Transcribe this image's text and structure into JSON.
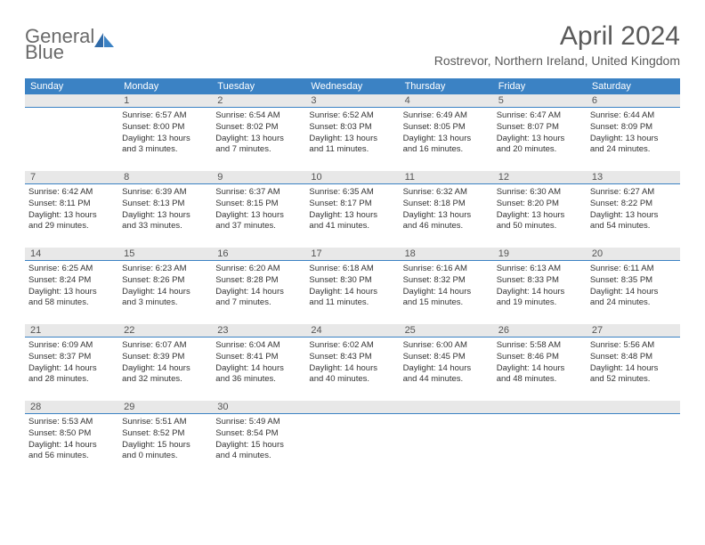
{
  "colors": {
    "header_bg": "#3b82c4",
    "header_text": "#ffffff",
    "daynum_bg": "#e8e8e8",
    "daynum_border": "#3b82c4",
    "body_text": "#333333",
    "title_text": "#5a5a5a",
    "logo_gray": "#6a6a6a",
    "logo_blue": "#3b82c4",
    "page_bg": "#ffffff"
  },
  "typography": {
    "title_fontsize": 30,
    "location_fontsize": 14,
    "weekday_fontsize": 11,
    "daynum_fontsize": 11,
    "cell_fontsize": 9.5
  },
  "logo": {
    "line1": "General",
    "line2": "Blue"
  },
  "title": "April 2024",
  "location": "Rostrevor, Northern Ireland, United Kingdom",
  "weekdays": [
    "Sunday",
    "Monday",
    "Tuesday",
    "Wednesday",
    "Thursday",
    "Friday",
    "Saturday"
  ],
  "weeks": [
    [
      null,
      {
        "n": "1",
        "sr": "Sunrise: 6:57 AM",
        "ss": "Sunset: 8:00 PM",
        "d1": "Daylight: 13 hours",
        "d2": "and 3 minutes."
      },
      {
        "n": "2",
        "sr": "Sunrise: 6:54 AM",
        "ss": "Sunset: 8:02 PM",
        "d1": "Daylight: 13 hours",
        "d2": "and 7 minutes."
      },
      {
        "n": "3",
        "sr": "Sunrise: 6:52 AM",
        "ss": "Sunset: 8:03 PM",
        "d1": "Daylight: 13 hours",
        "d2": "and 11 minutes."
      },
      {
        "n": "4",
        "sr": "Sunrise: 6:49 AM",
        "ss": "Sunset: 8:05 PM",
        "d1": "Daylight: 13 hours",
        "d2": "and 16 minutes."
      },
      {
        "n": "5",
        "sr": "Sunrise: 6:47 AM",
        "ss": "Sunset: 8:07 PM",
        "d1": "Daylight: 13 hours",
        "d2": "and 20 minutes."
      },
      {
        "n": "6",
        "sr": "Sunrise: 6:44 AM",
        "ss": "Sunset: 8:09 PM",
        "d1": "Daylight: 13 hours",
        "d2": "and 24 minutes."
      }
    ],
    [
      {
        "n": "7",
        "sr": "Sunrise: 6:42 AM",
        "ss": "Sunset: 8:11 PM",
        "d1": "Daylight: 13 hours",
        "d2": "and 29 minutes."
      },
      {
        "n": "8",
        "sr": "Sunrise: 6:39 AM",
        "ss": "Sunset: 8:13 PM",
        "d1": "Daylight: 13 hours",
        "d2": "and 33 minutes."
      },
      {
        "n": "9",
        "sr": "Sunrise: 6:37 AM",
        "ss": "Sunset: 8:15 PM",
        "d1": "Daylight: 13 hours",
        "d2": "and 37 minutes."
      },
      {
        "n": "10",
        "sr": "Sunrise: 6:35 AM",
        "ss": "Sunset: 8:17 PM",
        "d1": "Daylight: 13 hours",
        "d2": "and 41 minutes."
      },
      {
        "n": "11",
        "sr": "Sunrise: 6:32 AM",
        "ss": "Sunset: 8:18 PM",
        "d1": "Daylight: 13 hours",
        "d2": "and 46 minutes."
      },
      {
        "n": "12",
        "sr": "Sunrise: 6:30 AM",
        "ss": "Sunset: 8:20 PM",
        "d1": "Daylight: 13 hours",
        "d2": "and 50 minutes."
      },
      {
        "n": "13",
        "sr": "Sunrise: 6:27 AM",
        "ss": "Sunset: 8:22 PM",
        "d1": "Daylight: 13 hours",
        "d2": "and 54 minutes."
      }
    ],
    [
      {
        "n": "14",
        "sr": "Sunrise: 6:25 AM",
        "ss": "Sunset: 8:24 PM",
        "d1": "Daylight: 13 hours",
        "d2": "and 58 minutes."
      },
      {
        "n": "15",
        "sr": "Sunrise: 6:23 AM",
        "ss": "Sunset: 8:26 PM",
        "d1": "Daylight: 14 hours",
        "d2": "and 3 minutes."
      },
      {
        "n": "16",
        "sr": "Sunrise: 6:20 AM",
        "ss": "Sunset: 8:28 PM",
        "d1": "Daylight: 14 hours",
        "d2": "and 7 minutes."
      },
      {
        "n": "17",
        "sr": "Sunrise: 6:18 AM",
        "ss": "Sunset: 8:30 PM",
        "d1": "Daylight: 14 hours",
        "d2": "and 11 minutes."
      },
      {
        "n": "18",
        "sr": "Sunrise: 6:16 AM",
        "ss": "Sunset: 8:32 PM",
        "d1": "Daylight: 14 hours",
        "d2": "and 15 minutes."
      },
      {
        "n": "19",
        "sr": "Sunrise: 6:13 AM",
        "ss": "Sunset: 8:33 PM",
        "d1": "Daylight: 14 hours",
        "d2": "and 19 minutes."
      },
      {
        "n": "20",
        "sr": "Sunrise: 6:11 AM",
        "ss": "Sunset: 8:35 PM",
        "d1": "Daylight: 14 hours",
        "d2": "and 24 minutes."
      }
    ],
    [
      {
        "n": "21",
        "sr": "Sunrise: 6:09 AM",
        "ss": "Sunset: 8:37 PM",
        "d1": "Daylight: 14 hours",
        "d2": "and 28 minutes."
      },
      {
        "n": "22",
        "sr": "Sunrise: 6:07 AM",
        "ss": "Sunset: 8:39 PM",
        "d1": "Daylight: 14 hours",
        "d2": "and 32 minutes."
      },
      {
        "n": "23",
        "sr": "Sunrise: 6:04 AM",
        "ss": "Sunset: 8:41 PM",
        "d1": "Daylight: 14 hours",
        "d2": "and 36 minutes."
      },
      {
        "n": "24",
        "sr": "Sunrise: 6:02 AM",
        "ss": "Sunset: 8:43 PM",
        "d1": "Daylight: 14 hours",
        "d2": "and 40 minutes."
      },
      {
        "n": "25",
        "sr": "Sunrise: 6:00 AM",
        "ss": "Sunset: 8:45 PM",
        "d1": "Daylight: 14 hours",
        "d2": "and 44 minutes."
      },
      {
        "n": "26",
        "sr": "Sunrise: 5:58 AM",
        "ss": "Sunset: 8:46 PM",
        "d1": "Daylight: 14 hours",
        "d2": "and 48 minutes."
      },
      {
        "n": "27",
        "sr": "Sunrise: 5:56 AM",
        "ss": "Sunset: 8:48 PM",
        "d1": "Daylight: 14 hours",
        "d2": "and 52 minutes."
      }
    ],
    [
      {
        "n": "28",
        "sr": "Sunrise: 5:53 AM",
        "ss": "Sunset: 8:50 PM",
        "d1": "Daylight: 14 hours",
        "d2": "and 56 minutes."
      },
      {
        "n": "29",
        "sr": "Sunrise: 5:51 AM",
        "ss": "Sunset: 8:52 PM",
        "d1": "Daylight: 15 hours",
        "d2": "and 0 minutes."
      },
      {
        "n": "30",
        "sr": "Sunrise: 5:49 AM",
        "ss": "Sunset: 8:54 PM",
        "d1": "Daylight: 15 hours",
        "d2": "and 4 minutes."
      },
      null,
      null,
      null,
      null
    ]
  ]
}
